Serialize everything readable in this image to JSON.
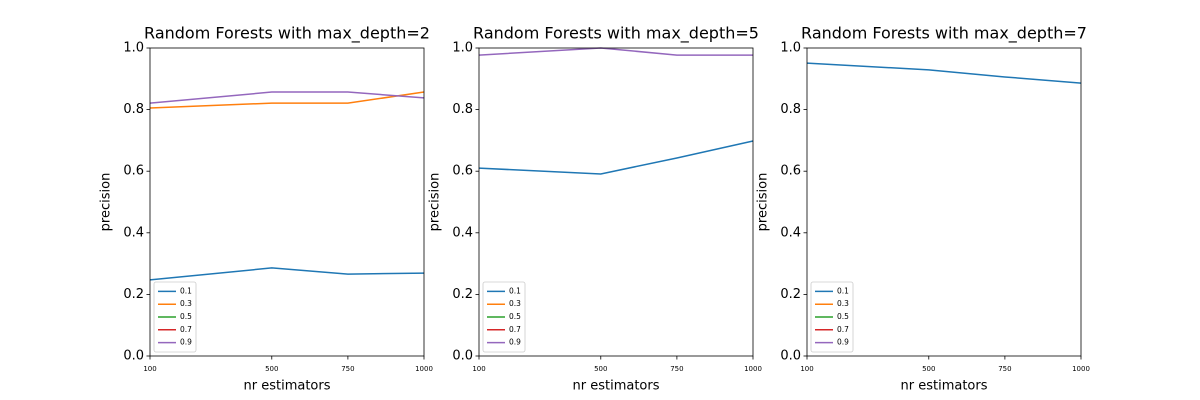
{
  "chart_data": [
    {
      "type": "line",
      "title": "Random Forests with max_depth=2",
      "xlabel": "nr estimators",
      "ylabel": "precision",
      "x": [
        100,
        500,
        750,
        1000
      ],
      "xlim": [
        100,
        1000
      ],
      "xticks": [
        100,
        500,
        750,
        1000
      ],
      "ylim": [
        0,
        1
      ],
      "yticks": [
        {
          "value": 0,
          "label": "0.0"
        },
        {
          "value": 0.2,
          "label": "0.2"
        },
        {
          "value": 0.4,
          "label": "0.4"
        },
        {
          "value": 0.6,
          "label": "0.6"
        },
        {
          "value": 0.8,
          "label": "0.8"
        },
        {
          "value": 1,
          "label": "1.0"
        }
      ],
      "legend": "lower left",
      "series": [
        {
          "name": "0.1",
          "color": "#1f77b4",
          "values": [
            0.247,
            0.286,
            0.266,
            0.269
          ]
        },
        {
          "name": "0.3",
          "color": "#ff7f0e",
          "values": [
            0.805,
            0.821,
            0.821,
            0.857
          ]
        },
        {
          "name": "0.5",
          "color": "#2ca02c",
          "values": [
            null,
            null,
            null,
            null
          ]
        },
        {
          "name": "0.7",
          "color": "#d62728",
          "values": [
            null,
            null,
            null,
            null
          ]
        },
        {
          "name": "0.9",
          "color": "#9467bd",
          "values": [
            0.821,
            0.857,
            0.857,
            0.838
          ]
        }
      ]
    },
    {
      "type": "line",
      "title": "Random Forests with max_depth=5",
      "xlabel": "nr estimators",
      "ylabel": "precision",
      "x": [
        100,
        500,
        750,
        1000
      ],
      "xlim": [
        100,
        1000
      ],
      "xticks": [
        100,
        500,
        750,
        1000
      ],
      "ylim": [
        0,
        1
      ],
      "yticks": [
        {
          "value": 0,
          "label": "0.0"
        },
        {
          "value": 0.2,
          "label": "0.2"
        },
        {
          "value": 0.4,
          "label": "0.4"
        },
        {
          "value": 0.6,
          "label": "0.6"
        },
        {
          "value": 0.8,
          "label": "0.8"
        },
        {
          "value": 1,
          "label": "1.0"
        }
      ],
      "legend": "lower left",
      "series": [
        {
          "name": "0.1",
          "color": "#1f77b4",
          "values": [
            0.61,
            0.591,
            0.643,
            0.698
          ]
        },
        {
          "name": "0.3",
          "color": "#ff7f0e",
          "values": [
            null,
            null,
            null,
            null
          ]
        },
        {
          "name": "0.5",
          "color": "#2ca02c",
          "values": [
            null,
            null,
            null,
            null
          ]
        },
        {
          "name": "0.7",
          "color": "#d62728",
          "values": [
            null,
            null,
            null,
            null
          ]
        },
        {
          "name": "0.9",
          "color": "#9467bd",
          "values": [
            0.977,
            1.0,
            0.977,
            0.977
          ]
        }
      ]
    },
    {
      "type": "line",
      "title": "Random Forests with max_depth=7",
      "xlabel": "nr estimators",
      "ylabel": "precision",
      "x": [
        100,
        500,
        750,
        1000
      ],
      "xlim": [
        100,
        1000
      ],
      "xticks": [
        100,
        500,
        750,
        1000
      ],
      "ylim": [
        0,
        1
      ],
      "yticks": [
        {
          "value": 0,
          "label": "0.0"
        },
        {
          "value": 0.2,
          "label": "0.2"
        },
        {
          "value": 0.4,
          "label": "0.4"
        },
        {
          "value": 0.6,
          "label": "0.6"
        },
        {
          "value": 0.8,
          "label": "0.8"
        },
        {
          "value": 1,
          "label": "1.0"
        }
      ],
      "legend": "lower left",
      "series": [
        {
          "name": "0.1",
          "color": "#1f77b4",
          "values": [
            0.951,
            0.929,
            0.906,
            0.886
          ]
        },
        {
          "name": "0.3",
          "color": "#ff7f0e",
          "values": [
            null,
            null,
            null,
            null
          ]
        },
        {
          "name": "0.5",
          "color": "#2ca02c",
          "values": [
            null,
            null,
            null,
            null
          ]
        },
        {
          "name": "0.7",
          "color": "#d62728",
          "values": [
            null,
            null,
            null,
            null
          ]
        },
        {
          "name": "0.9",
          "color": "#9467bd",
          "values": [
            null,
            null,
            null,
            null
          ]
        }
      ]
    }
  ]
}
